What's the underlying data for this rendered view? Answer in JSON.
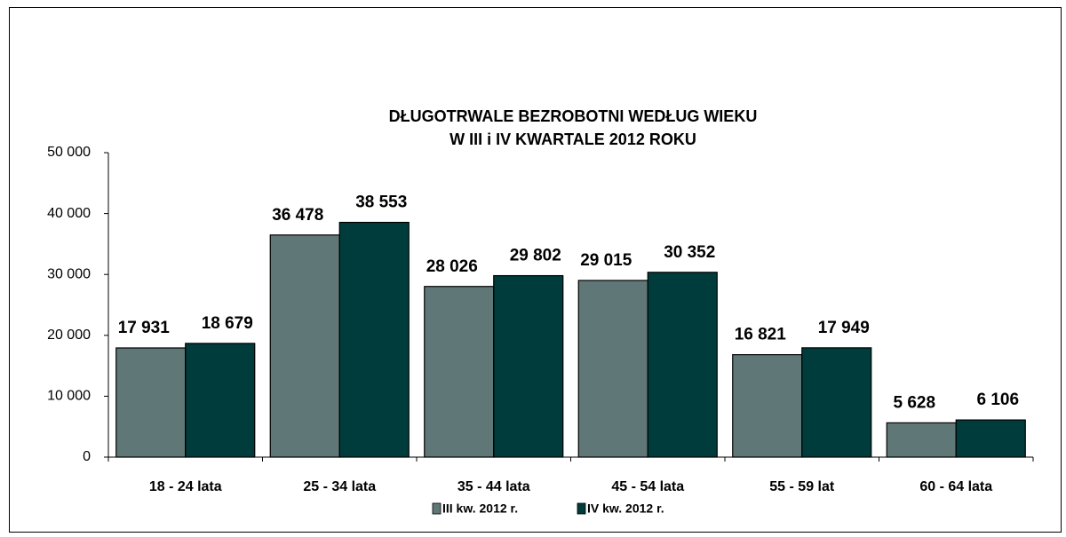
{
  "chart_data": {
    "type": "bar",
    "title": "DŁUGOTRWALE  BEZROBOTNI  WEDŁUG  WIEKU",
    "subtitle": "W  III i IV KWARTALE 2012 ROKU",
    "categories": [
      "18 - 24 lata",
      "25 - 34 lata",
      "35 - 44 lata",
      "45 - 54 lata",
      "55 - 59 lat",
      "60 - 64 lata"
    ],
    "series": [
      {
        "name": "III kw. 2012 r.",
        "color": "#5f7877",
        "values": [
          17931,
          36478,
          28026,
          29015,
          16821,
          5628
        ],
        "value_labels": [
          "17 931",
          "36 478",
          "28 026",
          "29 015",
          "16 821",
          "5 628"
        ]
      },
      {
        "name": "IV kw. 2012 r.",
        "color": "#003c3c",
        "values": [
          18679,
          38553,
          29802,
          30352,
          17949,
          6106
        ],
        "value_labels": [
          "18 679",
          "38 553",
          "29 802",
          "30 352",
          "17 949",
          "6 106"
        ]
      }
    ],
    "ylim": [
      0,
      50000
    ],
    "yticks": [
      {
        "value": 0,
        "label": "0"
      },
      {
        "value": 10000,
        "label": "10 000"
      },
      {
        "value": 20000,
        "label": "20 000"
      },
      {
        "value": 30000,
        "label": "30 000"
      },
      {
        "value": 40000,
        "label": "40 000"
      },
      {
        "value": 50000,
        "label": "50 000"
      }
    ],
    "legend": "bottom"
  }
}
